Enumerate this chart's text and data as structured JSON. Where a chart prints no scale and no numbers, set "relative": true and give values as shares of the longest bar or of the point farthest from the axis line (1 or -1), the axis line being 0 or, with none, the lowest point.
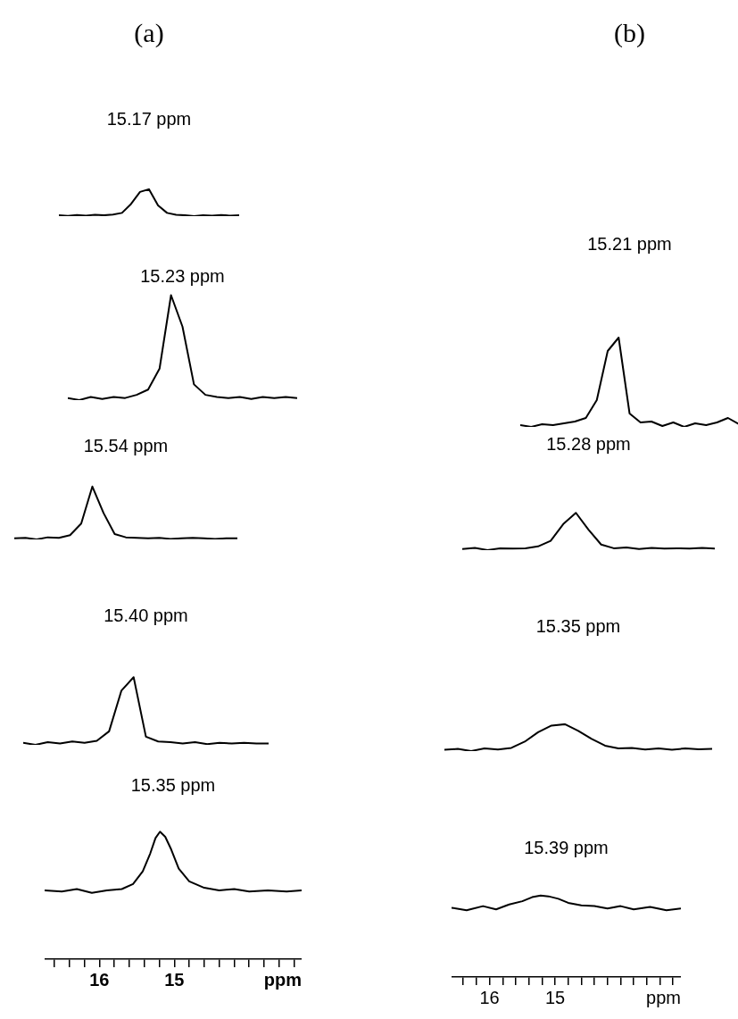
{
  "chart_data": [
    {
      "type": "line",
      "title": "(a)",
      "subtitle": "15.17 ppm",
      "relative": true,
      "tick_labels": false,
      "categories": [
        null,
        null,
        null,
        null,
        null,
        null,
        null,
        null,
        null,
        null,
        null,
        null,
        null,
        null,
        null,
        null,
        null,
        null,
        null,
        null,
        null
      ],
      "series": [
        {
          "color": "#000000",
          "values": [
            0.03,
            0.01,
            0.04,
            0.02,
            0.05,
            0.03,
            0.06,
            0.12,
            0.45,
            0.9,
            1,
            0.4,
            0.12,
            0.05,
            0.03,
            0.0,
            0.03,
            0.02,
            0.04,
            0.02,
            0.03
          ]
        }
      ]
    },
    {
      "type": "line",
      "title": "15.23 ppm",
      "relative": true,
      "tick_labels": false,
      "categories": [
        null,
        null,
        null,
        null,
        null,
        null,
        null,
        null,
        null,
        null,
        null,
        null,
        null,
        null,
        null,
        null,
        null,
        null,
        null,
        null,
        null
      ],
      "series": [
        {
          "color": "#000000",
          "values": [
            0.02,
            0.0,
            0.03,
            0.01,
            0.03,
            0.02,
            0.05,
            0.1,
            0.3,
            1,
            0.7,
            0.15,
            0.05,
            0.03,
            0.02,
            0.03,
            0.01,
            0.03,
            0.02,
            0.03,
            0.02
          ]
        }
      ]
    },
    {
      "type": "line",
      "title": "15.54 ppm",
      "relative": true,
      "tick_labels": false,
      "categories": [
        null,
        null,
        null,
        null,
        null,
        null,
        null,
        null,
        null,
        null,
        null,
        null,
        null,
        null,
        null,
        null,
        null,
        null,
        null,
        null,
        null
      ],
      "series": [
        {
          "color": "#000000",
          "values": [
            0.02,
            0.03,
            0.0,
            0.04,
            0.03,
            0.08,
            0.3,
            1,
            0.5,
            0.1,
            0.04,
            0.03,
            0.02,
            0.03,
            0.01,
            0.02,
            0.03,
            0.02,
            0.01,
            0.02,
            0.02
          ]
        }
      ]
    },
    {
      "type": "line",
      "title": "15.40 ppm",
      "relative": true,
      "tick_labels": false,
      "categories": [
        null,
        null,
        null,
        null,
        null,
        null,
        null,
        null,
        null,
        null,
        null,
        null,
        null,
        null,
        null,
        null,
        null,
        null,
        null,
        null,
        null
      ],
      "series": [
        {
          "color": "#000000",
          "values": [
            0.03,
            0.0,
            0.04,
            0.02,
            0.05,
            0.03,
            0.06,
            0.2,
            0.8,
            1,
            0.12,
            0.05,
            0.04,
            0.02,
            0.04,
            0.01,
            0.03,
            0.02,
            0.03,
            0.02,
            0.02
          ]
        }
      ]
    },
    {
      "type": "line",
      "title": "15.35 ppm",
      "xlabel": "ppm",
      "relative": true,
      "tick_labels": "x",
      "xlim": [
        16.73,
        13.3
      ],
      "xticks": [
        {
          "value": 16.6,
          "label": null
        },
        {
          "value": 16.4,
          "label": null
        },
        {
          "value": 16.2,
          "label": null
        },
        {
          "value": 16,
          "label": "16"
        },
        {
          "value": 15.8,
          "label": null
        },
        {
          "value": 15.6,
          "label": null
        },
        {
          "value": 15.4,
          "label": null
        },
        {
          "value": 15.2,
          "label": null
        },
        {
          "value": 15,
          "label": "15"
        },
        {
          "value": 14.8,
          "label": null
        },
        {
          "value": 14.6,
          "label": null
        },
        {
          "value": 14.4,
          "label": null
        },
        {
          "value": 14.2,
          "label": null
        },
        {
          "value": 14.0,
          "label": null
        },
        {
          "value": 13.8,
          "label": null
        },
        {
          "value": 13.6,
          "label": null
        },
        {
          "value": 13.4,
          "label": null
        }
      ],
      "x": [
        16.73,
        16.5,
        16.3,
        16.1,
        15.9,
        15.7,
        15.55,
        15.42,
        15.32,
        15.25,
        15.19,
        15.12,
        15.04,
        14.94,
        14.8,
        14.6,
        14.4,
        14.2,
        14.0,
        13.75,
        13.5,
        13.3
      ],
      "series": [
        {
          "color": "#000000",
          "values": [
            0.54,
            0.53,
            0.55,
            0.52,
            0.54,
            0.55,
            0.59,
            0.69,
            0.83,
            0.95,
            1,
            0.96,
            0.86,
            0.71,
            0.61,
            0.56,
            0.54,
            0.55,
            0.53,
            0.54,
            0.53,
            0.54
          ]
        }
      ]
    },
    {
      "type": "line",
      "title": "(b)",
      "subtitle": "15.21 ppm",
      "relative": true,
      "tick_labels": false,
      "categories": [
        null,
        null,
        null,
        null,
        null,
        null,
        null,
        null,
        null,
        null,
        null,
        null,
        null,
        null,
        null,
        null,
        null,
        null,
        null,
        null,
        null
      ],
      "series": [
        {
          "color": "#000000",
          "values": [
            0.02,
            0.0,
            0.03,
            0.02,
            0.04,
            0.06,
            0.1,
            0.3,
            0.85,
            1,
            0.15,
            0.05,
            0.06,
            0.01,
            0.05,
            0.0,
            0.04,
            0.02,
            0.05,
            0.1,
            0.03
          ]
        }
      ]
    },
    {
      "type": "line",
      "title": "15.28 ppm",
      "relative": true,
      "tick_labels": false,
      "categories": [
        null,
        null,
        null,
        null,
        null,
        null,
        null,
        null,
        null,
        null,
        null,
        null,
        null,
        null,
        null,
        null,
        null,
        null,
        null,
        null,
        null
      ],
      "series": [
        {
          "color": "#000000",
          "values": [
            0.03,
            0.06,
            0.0,
            0.05,
            0.04,
            0.05,
            0.1,
            0.25,
            0.7,
            1,
            0.55,
            0.15,
            0.05,
            0.07,
            0.03,
            0.06,
            0.04,
            0.05,
            0.04,
            0.06,
            0.04
          ]
        }
      ]
    },
    {
      "type": "line",
      "title": "15.35 ppm",
      "relative": true,
      "tick_labels": false,
      "categories": [
        null,
        null,
        null,
        null,
        null,
        null,
        null,
        null,
        null,
        null,
        null,
        null,
        null,
        null,
        null,
        null,
        null,
        null,
        null,
        null,
        null
      ],
      "series": [
        {
          "color": "#000000",
          "values": [
            0.05,
            0.08,
            0.0,
            0.1,
            0.06,
            0.12,
            0.35,
            0.7,
            0.95,
            1,
            0.75,
            0.45,
            0.2,
            0.1,
            0.12,
            0.06,
            0.1,
            0.05,
            0.1,
            0.07,
            0.08
          ]
        }
      ]
    },
    {
      "type": "line",
      "title": "15.39 ppm",
      "xlabel": "ppm",
      "relative": true,
      "tick_labels": "x",
      "xlim": [
        16.58,
        13.08
      ],
      "xticks": [
        {
          "value": 16.4,
          "label": null
        },
        {
          "value": 16.2,
          "label": null
        },
        {
          "value": 16,
          "label": "16"
        },
        {
          "value": 15.8,
          "label": null
        },
        {
          "value": 15.6,
          "label": null
        },
        {
          "value": 15.4,
          "label": null
        },
        {
          "value": 15.2,
          "label": null
        },
        {
          "value": 15,
          "label": "15"
        },
        {
          "value": 14.8,
          "label": null
        },
        {
          "value": 14.6,
          "label": null
        },
        {
          "value": 14.4,
          "label": null
        },
        {
          "value": 14.2,
          "label": null
        },
        {
          "value": 14.0,
          "label": null
        },
        {
          "value": 13.8,
          "label": null
        },
        {
          "value": 13.6,
          "label": null
        },
        {
          "value": 13.4,
          "label": null
        },
        {
          "value": 13.2,
          "label": null
        }
      ],
      "x": [
        16.58,
        16.35,
        16.1,
        15.9,
        15.7,
        15.5,
        15.35,
        15.22,
        15.1,
        14.95,
        14.8,
        14.6,
        14.4,
        14.2,
        14.0,
        13.8,
        13.55,
        13.3,
        13.08
      ],
      "series": [
        {
          "color": "#000000",
          "values": [
            0.85,
            0.82,
            0.87,
            0.83,
            0.89,
            0.93,
            0.98,
            1,
            0.99,
            0.96,
            0.91,
            0.88,
            0.87,
            0.84,
            0.87,
            0.83,
            0.86,
            0.82,
            0.84
          ]
        }
      ]
    }
  ]
}
